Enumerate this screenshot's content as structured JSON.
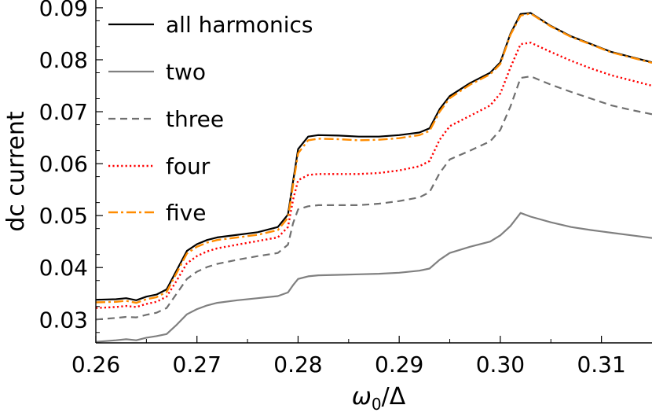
{
  "chart_data": {
    "type": "line",
    "xlabel": "ω0/Δ",
    "ylabel": "dc current",
    "xlim": [
      0.26,
      0.315
    ],
    "ylim": [
      0.0255,
      0.0915
    ],
    "xticks": [
      "0.26",
      "0.27",
      "0.28",
      "0.29",
      "0.30",
      "0.31"
    ],
    "yticks": [
      "0.03",
      "0.04",
      "0.05",
      "0.06",
      "0.07",
      "0.08",
      "0.09"
    ],
    "legend_position": "top-left",
    "grid": false,
    "series": [
      {
        "name": "all harmonics",
        "color": "#000000",
        "style": "solid",
        "x": [
          0.26,
          0.262,
          0.263,
          0.264,
          0.265,
          0.266,
          0.267,
          0.268,
          0.269,
          0.27,
          0.271,
          0.272,
          0.274,
          0.276,
          0.278,
          0.279,
          0.2795,
          0.28,
          0.281,
          0.282,
          0.284,
          0.286,
          0.288,
          0.29,
          0.292,
          0.293,
          0.294,
          0.295,
          0.297,
          0.299,
          0.3,
          0.301,
          0.302,
          0.303,
          0.305,
          0.307,
          0.309,
          0.311,
          0.313,
          0.315
        ],
        "y": [
          0.0338,
          0.0339,
          0.0341,
          0.0337,
          0.0344,
          0.0348,
          0.0358,
          0.0395,
          0.0432,
          0.0445,
          0.0453,
          0.0458,
          0.0463,
          0.0468,
          0.0478,
          0.0502,
          0.0565,
          0.0628,
          0.0652,
          0.0655,
          0.0654,
          0.0652,
          0.0652,
          0.0655,
          0.066,
          0.0668,
          0.0705,
          0.073,
          0.0755,
          0.0775,
          0.0795,
          0.085,
          0.0888,
          0.089,
          0.0865,
          0.0845,
          0.083,
          0.0815,
          0.0805,
          0.0795
        ]
      },
      {
        "name": "two",
        "color": "#808080",
        "style": "solid",
        "x": [
          0.26,
          0.262,
          0.263,
          0.264,
          0.265,
          0.266,
          0.267,
          0.268,
          0.269,
          0.27,
          0.271,
          0.272,
          0.274,
          0.276,
          0.278,
          0.279,
          0.2795,
          0.28,
          0.281,
          0.282,
          0.284,
          0.286,
          0.288,
          0.29,
          0.292,
          0.293,
          0.294,
          0.295,
          0.297,
          0.299,
          0.3,
          0.301,
          0.302,
          0.303,
          0.305,
          0.307,
          0.309,
          0.311,
          0.313,
          0.315
        ],
        "y": [
          0.0257,
          0.026,
          0.0262,
          0.026,
          0.0265,
          0.0268,
          0.0272,
          0.029,
          0.031,
          0.032,
          0.0327,
          0.0332,
          0.0337,
          0.0341,
          0.0345,
          0.0352,
          0.0366,
          0.0378,
          0.0383,
          0.0385,
          0.0386,
          0.0387,
          0.0388,
          0.039,
          0.0394,
          0.0398,
          0.0415,
          0.0428,
          0.044,
          0.045,
          0.0462,
          0.048,
          0.0505,
          0.0498,
          0.0487,
          0.0478,
          0.0472,
          0.0467,
          0.0462,
          0.0457
        ]
      },
      {
        "name": "three",
        "color": "#707070",
        "style": "dashed",
        "x": [
          0.26,
          0.262,
          0.263,
          0.264,
          0.265,
          0.266,
          0.267,
          0.268,
          0.269,
          0.27,
          0.271,
          0.272,
          0.274,
          0.276,
          0.278,
          0.279,
          0.2795,
          0.28,
          0.281,
          0.282,
          0.284,
          0.286,
          0.288,
          0.29,
          0.292,
          0.293,
          0.294,
          0.295,
          0.297,
          0.299,
          0.3,
          0.301,
          0.302,
          0.303,
          0.305,
          0.307,
          0.309,
          0.311,
          0.313,
          0.315
        ],
        "y": [
          0.03,
          0.0303,
          0.0305,
          0.0304,
          0.0309,
          0.0313,
          0.0322,
          0.035,
          0.0378,
          0.0392,
          0.0401,
          0.0407,
          0.0415,
          0.0422,
          0.0428,
          0.0444,
          0.0485,
          0.0512,
          0.0518,
          0.052,
          0.052,
          0.052,
          0.0523,
          0.0528,
          0.0535,
          0.0545,
          0.0582,
          0.0608,
          0.0625,
          0.0643,
          0.0665,
          0.071,
          0.0765,
          0.0768,
          0.0752,
          0.0738,
          0.0725,
          0.0712,
          0.0703,
          0.0695
        ]
      },
      {
        "name": "four",
        "color": "#ff0000",
        "style": "dotted",
        "x": [
          0.26,
          0.262,
          0.263,
          0.264,
          0.265,
          0.266,
          0.267,
          0.268,
          0.269,
          0.27,
          0.271,
          0.272,
          0.274,
          0.276,
          0.278,
          0.279,
          0.2795,
          0.28,
          0.281,
          0.282,
          0.284,
          0.286,
          0.288,
          0.29,
          0.292,
          0.293,
          0.294,
          0.295,
          0.297,
          0.299,
          0.3,
          0.301,
          0.302,
          0.303,
          0.305,
          0.307,
          0.309,
          0.311,
          0.313,
          0.315
        ],
        "y": [
          0.0322,
          0.0324,
          0.0326,
          0.0324,
          0.033,
          0.0334,
          0.0344,
          0.0375,
          0.0408,
          0.0422,
          0.0431,
          0.0437,
          0.0444,
          0.0451,
          0.0458,
          0.0478,
          0.053,
          0.0568,
          0.0578,
          0.058,
          0.058,
          0.058,
          0.0582,
          0.0587,
          0.0595,
          0.0605,
          0.0646,
          0.0672,
          0.0692,
          0.0712,
          0.0735,
          0.0785,
          0.083,
          0.0833,
          0.0815,
          0.0798,
          0.0783,
          0.077,
          0.076,
          0.075
        ]
      },
      {
        "name": "five",
        "color": "#ff8c00",
        "style": "dashdot",
        "x": [
          0.26,
          0.262,
          0.263,
          0.264,
          0.265,
          0.266,
          0.267,
          0.268,
          0.269,
          0.27,
          0.271,
          0.272,
          0.274,
          0.276,
          0.278,
          0.279,
          0.2795,
          0.28,
          0.281,
          0.282,
          0.284,
          0.286,
          0.288,
          0.29,
          0.292,
          0.293,
          0.294,
          0.295,
          0.297,
          0.299,
          0.3,
          0.301,
          0.302,
          0.303,
          0.305,
          0.307,
          0.309,
          0.311,
          0.313,
          0.315
        ],
        "y": [
          0.0333,
          0.0334,
          0.0336,
          0.0332,
          0.0339,
          0.0343,
          0.0353,
          0.039,
          0.0427,
          0.044,
          0.0448,
          0.0453,
          0.0458,
          0.0463,
          0.0472,
          0.0496,
          0.0558,
          0.062,
          0.0645,
          0.0648,
          0.0647,
          0.0645,
          0.0646,
          0.0649,
          0.0655,
          0.0663,
          0.07,
          0.0726,
          0.0752,
          0.0772,
          0.0792,
          0.0848,
          0.0885,
          0.0889,
          0.0864,
          0.0844,
          0.0829,
          0.0814,
          0.0804,
          0.0794
        ]
      }
    ]
  }
}
